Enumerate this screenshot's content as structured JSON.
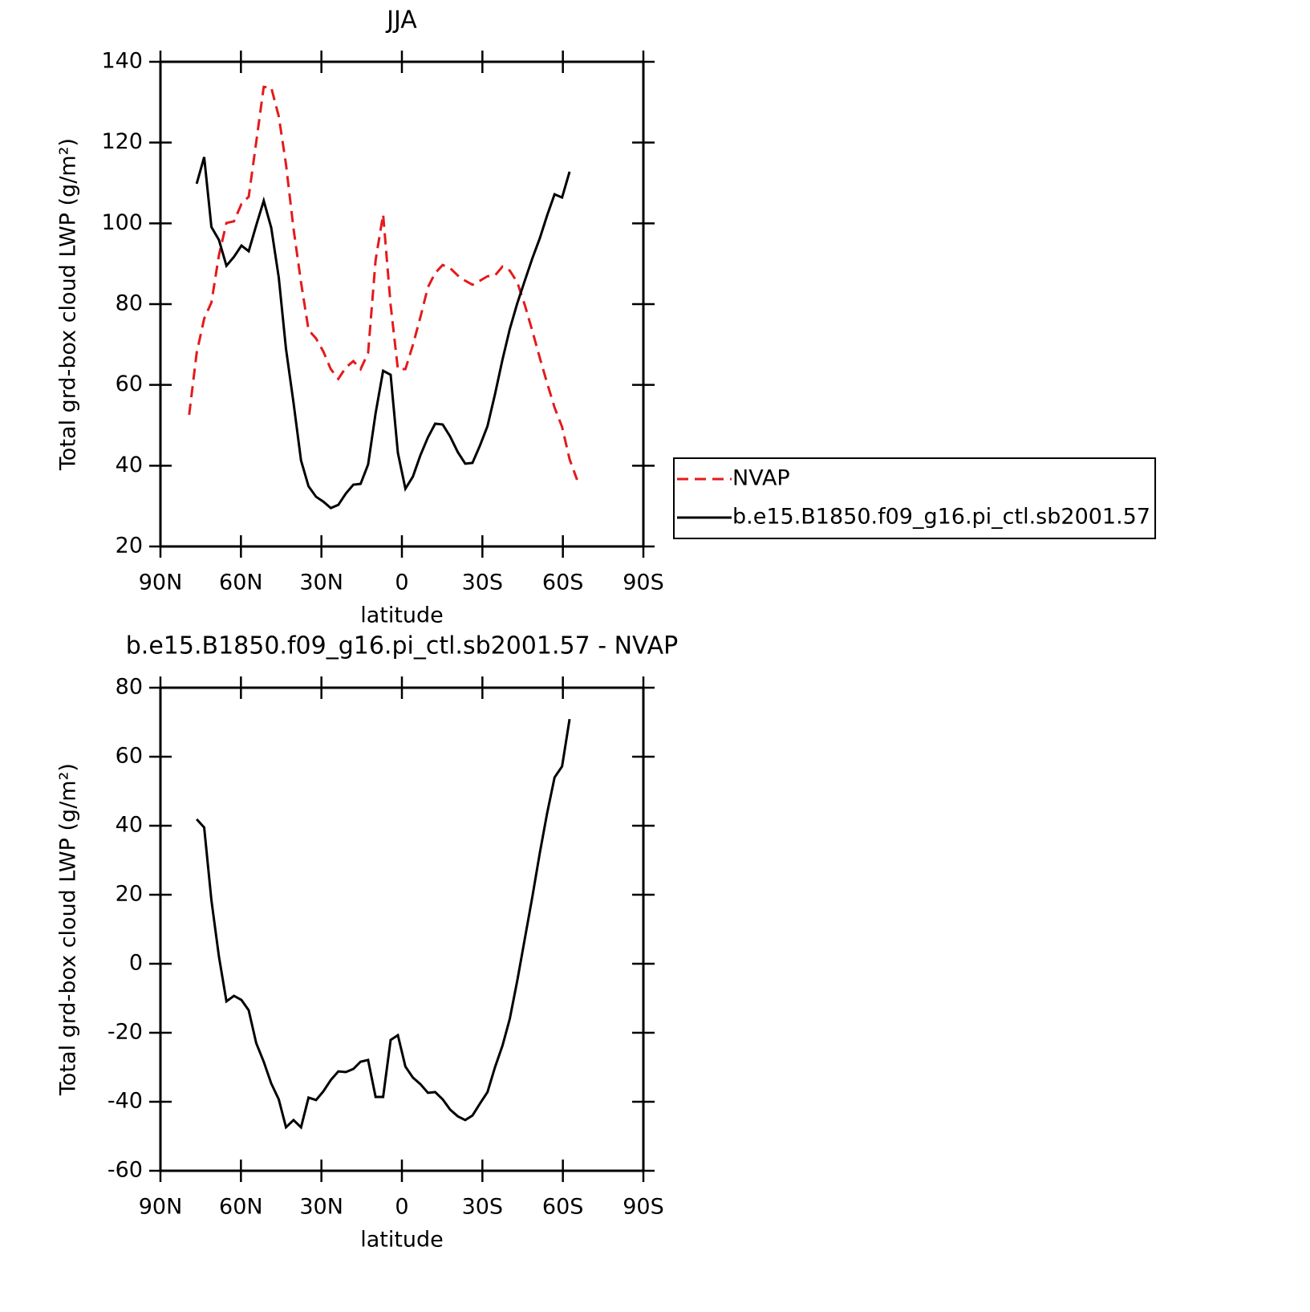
{
  "chart_data": [
    {
      "type": "line",
      "title": "JJA",
      "xlabel": "latitude",
      "ylabel": "Total grd-box cloud LWP (g/m²)",
      "x": [
        79.3,
        76.5,
        73.7,
        71.0,
        68.2,
        65.4,
        62.6,
        59.8,
        57.1,
        54.3,
        51.5,
        48.7,
        45.9,
        43.2,
        40.4,
        37.6,
        34.8,
        32.0,
        29.3,
        26.5,
        23.7,
        20.9,
        18.1,
        15.4,
        12.6,
        9.8,
        7.0,
        4.2,
        1.5,
        -1.3,
        -4.1,
        -6.9,
        -9.7,
        -12.4,
        -15.2,
        -18.0,
        -20.8,
        -23.6,
        -26.3,
        -29.1,
        -31.9,
        -34.7,
        -37.5,
        -40.2,
        -43.0,
        -45.8,
        -48.6,
        -51.4,
        -54.1,
        -56.9,
        -59.7,
        -62.5,
        -65.3
      ],
      "series": [
        {
          "name": "NVAP",
          "color": "#e41a1c",
          "dash": "dashed",
          "values": [
            52.6,
            67.9,
            76.4,
            80.4,
            92.1,
            100.1,
            100.5,
            104.8,
            106.6,
            120.1,
            133.8,
            133.6,
            126.5,
            114.6,
            98.7,
            85.4,
            73.6,
            71.5,
            68.3,
            63.9,
            61.5,
            64.3,
            65.9,
            63.9,
            67.9,
            90.9,
            102.2,
            79.8,
            63.9,
            63.9,
            69.9,
            76.8,
            84.2,
            87.7,
            89.7,
            88.9,
            87.1,
            85.8,
            84.8,
            85.8,
            86.9,
            87.1,
            89.3,
            88.3,
            85.4,
            79.8,
            73.4,
            66.7,
            60.5,
            54.4,
            49.6,
            41.6,
            36.5
          ]
        },
        {
          "name": "b.e15.B1850.f09_g16.pi_ctl.sb2001.57",
          "color": "#000000",
          "dash": "solid",
          "values": [
            null,
            109.8,
            116.4,
            99.1,
            95.9,
            89.5,
            91.7,
            94.5,
            93.1,
            99.5,
            105.6,
            98.9,
            86.6,
            68.9,
            55.6,
            41.3,
            34.9,
            32.3,
            31.1,
            29.5,
            30.3,
            33.1,
            35.3,
            35.5,
            40.3,
            53.0,
            63.5,
            62.5,
            43.2,
            34.3,
            37.3,
            42.6,
            47.0,
            50.4,
            50.2,
            47.2,
            43.4,
            40.5,
            40.7,
            45.0,
            49.8,
            57.7,
            66.3,
            73.8,
            80.2,
            85.8,
            91.3,
            96.3,
            101.9,
            107.2,
            106.4,
            112.8,
            null
          ]
        }
      ],
      "xlim": [
        90,
        -90
      ],
      "xticks": [
        {
          "value": 90,
          "label": "90N"
        },
        {
          "value": 60,
          "label": "60N"
        },
        {
          "value": 30,
          "label": "30N"
        },
        0,
        {
          "value": -30,
          "label": "30S"
        },
        {
          "value": -60,
          "label": "60S"
        },
        {
          "value": -90,
          "label": "90S"
        }
      ],
      "ylim": [
        20,
        140
      ],
      "yticks": [
        20,
        40,
        60,
        80,
        100,
        120,
        140
      ],
      "legend": "right"
    },
    {
      "type": "line",
      "title": "b.e15.B1850.f09_g16.pi_ctl.sb2001.57 - NVAP",
      "xlabel": "latitude",
      "ylabel": "Total grd-box cloud LWP (g/m²)",
      "x": [
        79.3,
        76.5,
        73.7,
        71.0,
        68.2,
        65.4,
        62.6,
        59.8,
        57.1,
        54.3,
        51.5,
        48.7,
        45.9,
        43.2,
        40.4,
        37.6,
        34.8,
        32.0,
        29.3,
        26.5,
        23.7,
        20.9,
        18.1,
        15.4,
        12.6,
        9.8,
        7.0,
        4.2,
        1.5,
        -1.3,
        -4.1,
        -6.9,
        -9.7,
        -12.4,
        -15.2,
        -18.0,
        -20.8,
        -23.6,
        -26.3,
        -29.1,
        -31.9,
        -34.7,
        -37.5,
        -40.2,
        -43.0,
        -45.8,
        -48.6,
        -51.4,
        -54.1,
        -56.9,
        -59.7,
        -62.5,
        -65.3
      ],
      "series": [
        {
          "color": "#000000",
          "dash": "solid",
          "values": [
            null,
            41.9,
            39.5,
            18.4,
            2.1,
            -10.9,
            -9.3,
            -10.5,
            -13.5,
            -23.0,
            -28.4,
            -34.7,
            -39.3,
            -47.4,
            -45.3,
            -47.4,
            -38.8,
            -39.5,
            -37.0,
            -33.7,
            -31.2,
            -31.4,
            -30.5,
            -28.4,
            -27.9,
            -38.6,
            -38.6,
            -22.1,
            -20.7,
            -29.8,
            -33.0,
            -34.9,
            -37.4,
            -37.2,
            -39.3,
            -42.3,
            -44.2,
            -45.3,
            -44.0,
            -40.5,
            -37.2,
            -30.0,
            -23.7,
            -16.0,
            -4.9,
            7.2,
            19.3,
            32.1,
            43.5,
            54.0,
            57.2,
            70.9,
            null
          ]
        }
      ],
      "xlim": [
        90,
        -90
      ],
      "xticks": [
        {
          "value": 90,
          "label": "90N"
        },
        {
          "value": 60,
          "label": "60N"
        },
        {
          "value": 30,
          "label": "30N"
        },
        0,
        {
          "value": -30,
          "label": "30S"
        },
        {
          "value": -60,
          "label": "60S"
        },
        {
          "value": -90,
          "label": "90S"
        }
      ],
      "ylim": [
        -60,
        80
      ],
      "yticks": [
        -60,
        -40,
        -20,
        0,
        20,
        40,
        60,
        80
      ]
    }
  ]
}
